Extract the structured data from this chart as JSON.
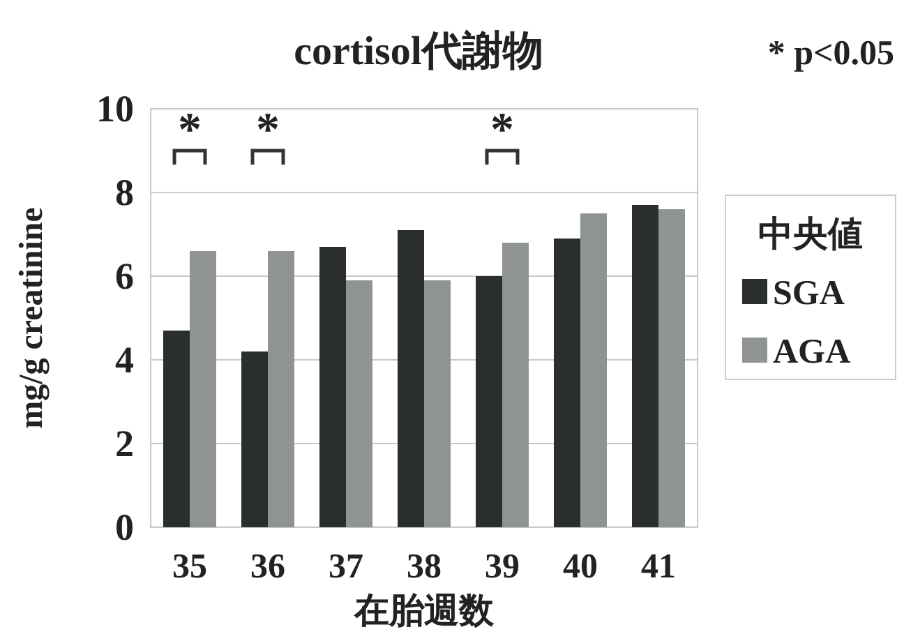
{
  "chart_data": {
    "type": "bar",
    "title": "cortisol代謝物",
    "xlabel": "在胎週数",
    "ylabel": "mg/g creatinine",
    "legend_title": "中央値",
    "categories": [
      "35",
      "36",
      "37",
      "38",
      "39",
      "40",
      "41"
    ],
    "series": [
      {
        "name": "SGA",
        "color": "#2a2f2c",
        "values": [
          4.7,
          4.2,
          6.7,
          7.1,
          6.0,
          6.9,
          7.7
        ]
      },
      {
        "name": "AGA",
        "color": "#8f9391",
        "values": [
          6.6,
          6.6,
          5.9,
          5.9,
          6.8,
          7.5,
          7.6
        ]
      }
    ],
    "ylim": [
      0,
      10
    ],
    "yticks": [
      0,
      2,
      4,
      6,
      8,
      10
    ],
    "grid": "y",
    "legend": "right",
    "annotations": [
      "*",
      "*",
      "*",
      "* p<0.05"
    ]
  }
}
